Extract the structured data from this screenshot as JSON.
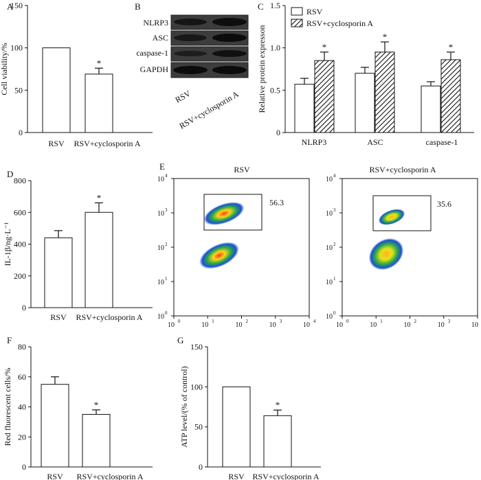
{
  "panels": {
    "A": "A",
    "B": "B",
    "C": "C",
    "D": "D",
    "E": "E",
    "F": "F",
    "G": "G"
  },
  "blot": {
    "proteins": [
      "NLRP3",
      "ASC",
      "caspase-1",
      "GAPDH"
    ],
    "lanes": [
      "RSV",
      "RSV+cyclosporin A"
    ]
  },
  "flow": {
    "panels": [
      {
        "title": "RSV",
        "gate_value": "56.3"
      },
      {
        "title": "RSV+cyclosporin A",
        "gate_value": "35.6"
      }
    ],
    "ticks": [
      "10",
      "10",
      "10",
      "10",
      "10"
    ],
    "tick_exps": [
      "0",
      "1",
      "2",
      "3",
      "4"
    ]
  },
  "colors": {
    "bar_fill": "#ffffff",
    "bar_stroke": "#111111",
    "hatch": "#111111"
  },
  "chart_data": [
    {
      "id": "A",
      "type": "bar",
      "categories": [
        "RSV",
        "RSV+cyclosporin A"
      ],
      "values": [
        100,
        69
      ],
      "errors": [
        0,
        7
      ],
      "significance": [
        "",
        "*"
      ],
      "xlabel": "",
      "ylabel": "Cell viability/%",
      "ylim": [
        0,
        150
      ],
      "yticks": [
        0,
        50,
        100,
        150
      ]
    },
    {
      "id": "C",
      "type": "bar",
      "categories": [
        "NLRP3",
        "ASC",
        "caspase-1"
      ],
      "series": [
        {
          "name": "RSV",
          "values": [
            0.57,
            0.7,
            0.55
          ],
          "errors": [
            0.07,
            0.07,
            0.05
          ]
        },
        {
          "name": "RSV+cyclosporin A",
          "values": [
            0.85,
            0.95,
            0.86
          ],
          "errors": [
            0.1,
            0.12,
            0.09
          ]
        }
      ],
      "significance": [
        "*",
        "*",
        "*"
      ],
      "xlabel": "",
      "ylabel": "Relative protein expresson",
      "ylim": [
        0,
        1.5
      ],
      "yticks": [
        0,
        0.5,
        1.0,
        1.5
      ],
      "ytick_labels": [
        "0",
        "0.5",
        "1.0",
        "1.5"
      ],
      "legend": "top-left"
    },
    {
      "id": "D",
      "type": "bar",
      "categories": [
        "RSV",
        "RSV+cyclosporin A"
      ],
      "values": [
        440,
        600
      ],
      "errors": [
        45,
        60
      ],
      "significance": [
        "",
        "*"
      ],
      "xlabel": "",
      "ylabel": "IL-1β/ng·L⁻¹",
      "ylim": [
        0,
        800
      ],
      "yticks": [
        0,
        200,
        400,
        600,
        800
      ]
    },
    {
      "id": "F",
      "type": "bar",
      "categories": [
        "RSV",
        "RSV+cyclosporin A"
      ],
      "values": [
        55,
        35
      ],
      "errors": [
        5,
        3
      ],
      "significance": [
        "",
        "*"
      ],
      "xlabel": "",
      "ylabel": "Red fluorescent cells/%",
      "ylim": [
        0,
        80
      ],
      "yticks": [
        0,
        20,
        40,
        60,
        80
      ]
    },
    {
      "id": "G",
      "type": "bar",
      "categories": [
        "RSV",
        "RSV+cyclosporin A"
      ],
      "values": [
        100,
        64
      ],
      "errors": [
        0,
        7
      ],
      "significance": [
        "",
        "*"
      ],
      "xlabel": "",
      "ylabel": "ATP level/(% of control)",
      "ylim": [
        0,
        150
      ],
      "yticks": [
        0,
        50,
        100,
        150
      ]
    }
  ]
}
